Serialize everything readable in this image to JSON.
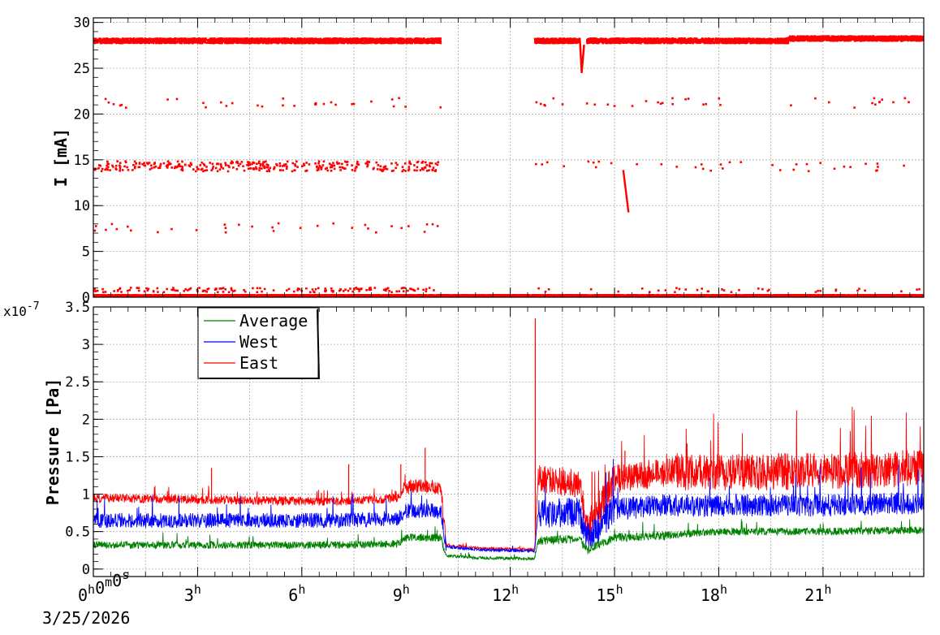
{
  "chart_data": [
    {
      "type": "scatter",
      "ylabel": "I [mA]",
      "ylim": [
        0,
        30.5
      ],
      "yticks": [
        "0",
        "5",
        "10",
        "15",
        "20",
        "25",
        "30"
      ],
      "grid": true,
      "x_unit": "hours since 2026-03-25 00:00",
      "xlim": [
        0,
        23.9
      ],
      "series": [
        {
          "color": "#ff0000",
          "bands": [
            {
              "level": 28.0,
              "segments": [
                [
                  0,
                  10.0
                ],
                [
                  12.7,
                  14.0
                ],
                [
                  14.2,
                  23.9
                ]
              ]
            },
            {
              "level": 0.2,
              "segments": [
                [
                  0,
                  23.9
                ]
              ]
            }
          ],
          "scattered_levels": [
            {
              "level": 14.3,
              "x_ranges": [
                [
                  0,
                  10.0
                ]
              ],
              "note_density": "dense"
            },
            {
              "level": 14.3,
              "x_ranges": [
                [
                  12.7,
                  23.9
                ]
              ],
              "note_density": "sparse"
            },
            {
              "level": 21.2,
              "x_ranges": [
                [
                  0,
                  10.0
                ],
                [
                  12.7,
                  23.9
                ]
              ],
              "note_density": "sparse"
            },
            {
              "level": 7.6,
              "x_ranges": [
                [
                  0,
                  10.0
                ]
              ],
              "note_density": "sparse"
            },
            {
              "level": 0.8,
              "x_ranges": [
                [
                  0,
                  10.0
                ]
              ],
              "note_density": "medium"
            },
            {
              "level": 0.8,
              "x_ranges": [
                [
                  12.7,
                  23.9
                ]
              ],
              "note_density": "sparse"
            }
          ],
          "decay": [
            [
              15.25,
              13.8
            ],
            [
              15.4,
              9.2
            ]
          ],
          "dip": [
            [
              14.0,
              28.0
            ],
            [
              14.05,
              24.6
            ],
            [
              14.12,
              27.6
            ]
          ]
        }
      ]
    },
    {
      "type": "line",
      "ylabel": "Pressure [Pa]",
      "y_multiplier": "x10",
      "y_exponent": "-7",
      "ylim": [
        -0.1,
        3.5
      ],
      "yticks": [
        "0",
        "0.5",
        "1",
        "1.5",
        "2",
        "2.5",
        "3",
        "3.5"
      ],
      "xticks": [
        {
          "value": 0,
          "label": "0",
          "sup": "h"
        },
        {
          "value": 3,
          "label": "3",
          "sup": "h"
        },
        {
          "value": 6,
          "label": "6",
          "sup": "h"
        },
        {
          "value": 9,
          "label": "9",
          "sup": "h"
        },
        {
          "value": 12,
          "label": "12",
          "sup": "h"
        },
        {
          "value": 15,
          "label": "15",
          "sup": "h"
        },
        {
          "value": 18,
          "label": "18",
          "sup": "h"
        },
        {
          "value": 21,
          "label": "21",
          "sup": "h"
        }
      ],
      "x_origin_label": {
        "h": "0",
        "m": "0",
        "s": "0"
      },
      "date_label": "3/25/2026",
      "grid": true,
      "legend_position": "top-left",
      "series": [
        {
          "name": "Average",
          "color": "#008000",
          "levels": [
            [
              0,
              0.32
            ],
            [
              7.0,
              0.32
            ],
            [
              8.8,
              0.34
            ],
            [
              9.0,
              0.42
            ],
            [
              10.0,
              0.42
            ],
            [
              10.15,
              0.18
            ],
            [
              11.0,
              0.15
            ],
            [
              12.7,
              0.14
            ],
            [
              12.8,
              0.38
            ],
            [
              14.0,
              0.4
            ],
            [
              14.2,
              0.25
            ],
            [
              15.0,
              0.42
            ],
            [
              16.5,
              0.45
            ],
            [
              18.0,
              0.5
            ],
            [
              21.0,
              0.5
            ],
            [
              23.9,
              0.52
            ]
          ],
          "noise": [
            0.05,
            0.05,
            0.05,
            0.05,
            0.05,
            0.02,
            0.02,
            0.02,
            0.06,
            0.06,
            0.06,
            0.06,
            0.05,
            0.05,
            0.05,
            0.05
          ]
        },
        {
          "name": "West",
          "color": "#0000ff",
          "levels": [
            [
              0,
              0.65
            ],
            [
              7.0,
              0.65
            ],
            [
              8.8,
              0.68
            ],
            [
              9.0,
              0.78
            ],
            [
              10.0,
              0.78
            ],
            [
              10.15,
              0.3
            ],
            [
              11.0,
              0.26
            ],
            [
              12.7,
              0.24
            ],
            [
              12.8,
              0.75
            ],
            [
              14.0,
              0.75
            ],
            [
              14.2,
              0.4
            ],
            [
              15.0,
              0.8
            ],
            [
              16.5,
              0.85
            ],
            [
              18.0,
              0.85
            ],
            [
              21.0,
              0.85
            ],
            [
              23.9,
              0.88
            ]
          ],
          "noise": [
            0.1,
            0.1,
            0.1,
            0.1,
            0.1,
            0.02,
            0.02,
            0.02,
            0.2,
            0.2,
            0.2,
            0.15,
            0.15,
            0.15,
            0.15,
            0.15
          ]
        },
        {
          "name": "East",
          "color": "#ff0000",
          "levels": [
            [
              0,
              0.95
            ],
            [
              7.0,
              0.9
            ],
            [
              8.8,
              0.95
            ],
            [
              9.0,
              1.1
            ],
            [
              10.0,
              1.1
            ],
            [
              10.15,
              0.32
            ],
            [
              11.0,
              0.28
            ],
            [
              12.7,
              0.26
            ],
            [
              12.8,
              1.2
            ],
            [
              14.0,
              1.15
            ],
            [
              14.2,
              0.5
            ],
            [
              15.0,
              1.2
            ],
            [
              16.5,
              1.3
            ],
            [
              18.0,
              1.3
            ],
            [
              21.0,
              1.3
            ],
            [
              23.9,
              1.35
            ]
          ],
          "noise": [
            0.06,
            0.06,
            0.06,
            0.1,
            0.1,
            0.02,
            0.02,
            0.02,
            0.2,
            0.2,
            0.25,
            0.2,
            0.25,
            0.25,
            0.25,
            0.25
          ],
          "spikes": [
            [
              3.4,
              1.35
            ],
            [
              7.35,
              1.4
            ],
            [
              8.85,
              1.4
            ],
            [
              9.55,
              1.62
            ],
            [
              12.72,
              3.35
            ],
            [
              14.35,
              1.3
            ],
            [
              15.3,
              1.58
            ]
          ]
        }
      ]
    }
  ]
}
